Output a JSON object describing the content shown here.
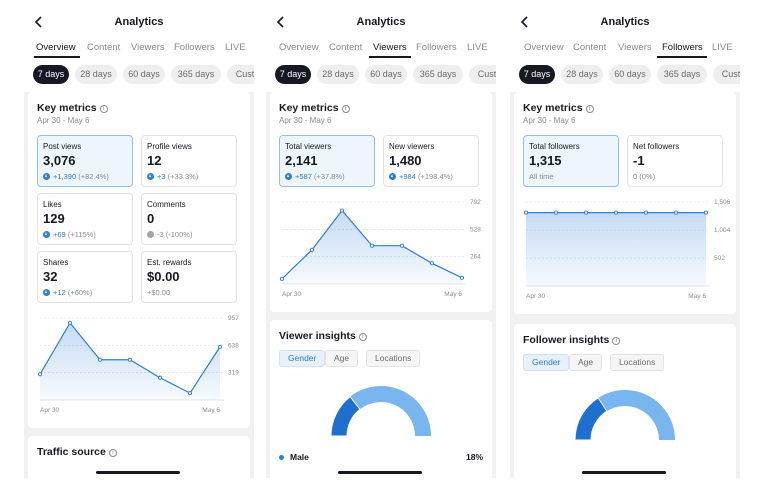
{
  "screens": [
    {
      "title": "Analytics",
      "tabs": [
        "Overview",
        "Content",
        "Viewers",
        "Followers",
        "LIVE"
      ],
      "active_tab": "Overview",
      "filters": [
        "7 days",
        "28 days",
        "60 days",
        "365 days",
        "Cust"
      ],
      "active_filter": "7 days",
      "key_metrics": {
        "title": "Key metrics",
        "date_range": "Apr 30 - May 6",
        "tiles": [
          {
            "label": "Post views",
            "value": "3,076",
            "delta": "+1,390",
            "pct": "(+82.4%)",
            "trend": "up",
            "selected": true
          },
          {
            "label": "Profile views",
            "value": "12",
            "delta": "+3",
            "pct": "(+33.3%)",
            "trend": "up",
            "selected": false
          },
          {
            "label": "Likes",
            "value": "129",
            "delta": "+69",
            "pct": "(+115%)",
            "trend": "up",
            "selected": false
          },
          {
            "label": "Comments",
            "value": "0",
            "delta": "-3",
            "pct": "(-100%)",
            "trend": "down",
            "selected": false
          },
          {
            "label": "Shares",
            "value": "32",
            "delta": "+12",
            "pct": "(+60%)",
            "trend": "up",
            "selected": false
          },
          {
            "label": "Est. rewards",
            "value": "$0.00",
            "delta": "",
            "pct": "+$0.00",
            "trend": "none",
            "selected": false
          }
        ]
      },
      "traffic_source_title": "Traffic source"
    },
    {
      "title": "Analytics",
      "tabs": [
        "Overview",
        "Content",
        "Viewers",
        "Followers",
        "LIVE"
      ],
      "active_tab": "Viewers",
      "filters": [
        "7 days",
        "28 days",
        "60 days",
        "365 days",
        "Cust"
      ],
      "active_filter": "7 days",
      "key_metrics": {
        "title": "Key metrics",
        "date_range": "Apr 30 - May 6",
        "tiles": [
          {
            "label": "Total viewers",
            "value": "2,141",
            "delta": "+587",
            "pct": "(+37.8%)",
            "trend": "up",
            "selected": true
          },
          {
            "label": "New viewers",
            "value": "1,480",
            "delta": "+984",
            "pct": "(+198.4%)",
            "trend": "up",
            "selected": false
          }
        ]
      },
      "insights": {
        "title": "Viewer insights",
        "segments": [
          "Gender",
          "Age",
          "Locations"
        ],
        "active_segment": "Gender",
        "legend": [
          {
            "label": "Male",
            "value": "18%"
          }
        ]
      }
    },
    {
      "title": "Analytics",
      "tabs": [
        "Overview",
        "Content",
        "Viewers",
        "Followers",
        "LIVE"
      ],
      "active_tab": "Followers",
      "filters": [
        "7 days",
        "28 days",
        "60 days",
        "365 days",
        "Cust"
      ],
      "active_filter": "7 days",
      "key_metrics": {
        "title": "Key metrics",
        "date_range": "Apr 30 - May 6",
        "tiles": [
          {
            "label": "Total followers",
            "value": "1,315",
            "delta": "",
            "pct": "All time",
            "trend": "none",
            "selected": true
          },
          {
            "label": "Net followers",
            "value": "-1",
            "delta": "",
            "pct": "0 (0%)",
            "trend": "none",
            "selected": false
          }
        ]
      },
      "insights": {
        "title": "Follower insights",
        "segments": [
          "Gender",
          "Age",
          "Locations"
        ],
        "active_segment": "Gender"
      }
    }
  ],
  "chart_data": [
    {
      "type": "area",
      "x": [
        "Apr 30",
        "May 1",
        "May 2",
        "May 3",
        "May 4",
        "May 5",
        "May 6"
      ],
      "x_tick_labels": [
        "Apr 30",
        "May 6"
      ],
      "y": [
        300,
        900,
        470,
        470,
        260,
        80,
        620
      ],
      "y_ticks": [
        "957",
        "638",
        "319"
      ],
      "y_tick_values": [
        957,
        638,
        319
      ],
      "ylim": [
        0,
        957
      ],
      "color": "#2d7ed8"
    },
    {
      "type": "area",
      "x": [
        "Apr 30",
        "May 1",
        "May 2",
        "May 3",
        "May 4",
        "May 5",
        "May 6"
      ],
      "x_tick_labels": [
        "Apr 30",
        "May 6"
      ],
      "y": [
        50,
        330,
        710,
        370,
        370,
        200,
        60
      ],
      "y_ticks": [
        "792",
        "528",
        "264"
      ],
      "y_tick_values": [
        792,
        528,
        264
      ],
      "ylim": [
        0,
        792
      ],
      "color": "#2d7ed8"
    },
    {
      "type": "area",
      "x": [
        "Apr 30",
        "May 1",
        "May 2",
        "May 3",
        "May 4",
        "May 5",
        "May 6"
      ],
      "x_tick_labels": [
        "Apr 30",
        "May 6"
      ],
      "y": [
        1315,
        1315,
        1315,
        1315,
        1315,
        1315,
        1315
      ],
      "y_ticks": [
        "1,506",
        "1,004",
        "502"
      ],
      "y_tick_values": [
        1506,
        1004,
        502
      ],
      "ylim": [
        0,
        1506
      ],
      "color": "#2d7ed8"
    },
    {
      "type": "pie",
      "categories": [
        "Male"
      ],
      "values": [
        18
      ],
      "colors": {
        "Male": "#1f6fd1",
        "rest": "#79b5ee"
      }
    },
    {
      "type": "pie",
      "values": [
        20
      ],
      "colors": {
        "primary": "#1f6fd1",
        "rest": "#79b5ee"
      }
    }
  ]
}
